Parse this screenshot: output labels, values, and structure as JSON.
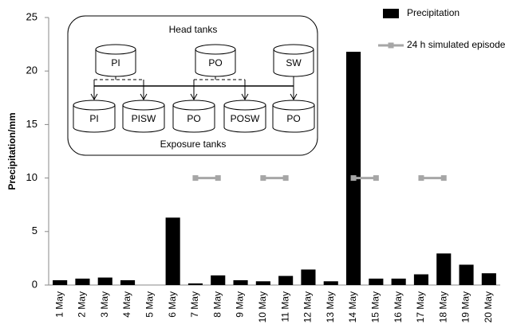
{
  "chart_data": {
    "type": "bar",
    "y_label": "Precipitation/mm",
    "categories": [
      "1 May",
      "2 May",
      "3 May",
      "4 May",
      "5 May",
      "6 May",
      "7 May",
      "8 May",
      "9 May",
      "10 May",
      "11 May",
      "12 May",
      "13 May",
      "14 May",
      "15 May",
      "16 May",
      "17 May",
      "18 May",
      "19 May",
      "20 May"
    ],
    "series": [
      {
        "name": "Precipitation",
        "type": "bar",
        "color": "#000000",
        "values": [
          0.45,
          0.6,
          0.7,
          0.45,
          0,
          6.3,
          0.15,
          0.9,
          0.45,
          0.35,
          0.85,
          1.45,
          0.35,
          21.8,
          0.6,
          0.6,
          1.0,
          2.95,
          1.9,
          1.1
        ]
      },
      {
        "name": "24 h simulated episode",
        "type": "line",
        "color": "#a6a6a6",
        "values": [
          null,
          null,
          null,
          null,
          null,
          null,
          10,
          10,
          null,
          10,
          10,
          null,
          null,
          10,
          10,
          null,
          10,
          10,
          null,
          null
        ]
      }
    ],
    "ylim": [
      0,
      25
    ],
    "yticks": [
      0,
      5,
      10,
      15,
      20,
      25
    ],
    "legend": "top-right",
    "inset": {
      "title": "Head tanks",
      "footer": "Exposure tanks",
      "head": [
        "PI",
        "PO",
        "SW"
      ],
      "exposure": [
        "PI",
        "PISW",
        "PO",
        "POSW",
        "PO"
      ]
    }
  }
}
